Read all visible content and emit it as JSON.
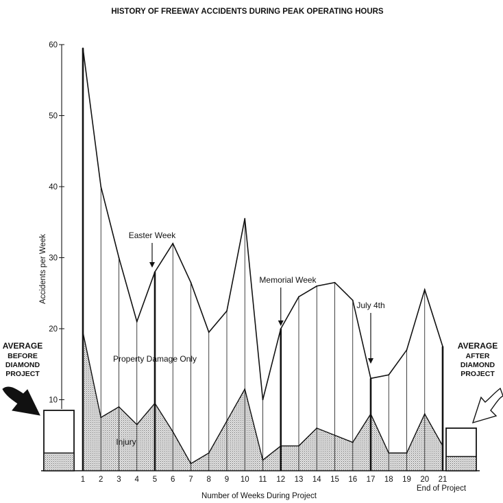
{
  "chart_data": {
    "type": "line",
    "title": "HISTORY OF FREEWAY ACCIDENTS DURING PEAK OPERATING HOURS",
    "xlabel": "Number of Weeks During Project",
    "ylabel": "Accidents per Week",
    "ylim": [
      0,
      60
    ],
    "yticks": [
      10,
      20,
      30,
      40,
      50,
      60
    ],
    "x": [
      1,
      2,
      3,
      4,
      5,
      6,
      7,
      8,
      9,
      10,
      11,
      12,
      13,
      14,
      15,
      16,
      17,
      18,
      19,
      20,
      21
    ],
    "x_tick_labels": [
      "1",
      "2",
      "3",
      "4",
      "5",
      "6",
      "7",
      "8",
      "9",
      "10",
      "11",
      "12",
      "13",
      "14",
      "15",
      "16",
      "17",
      "18",
      "19",
      "20",
      "21"
    ],
    "x_end_label": "End of Project",
    "series": [
      {
        "values": [
          59.5,
          40,
          30,
          21,
          28,
          32,
          26.5,
          19.5,
          22.5,
          35.5,
          10,
          20,
          24.5,
          26,
          26.5,
          24,
          13,
          13.5,
          17,
          25.5,
          17.5
        ]
      },
      {
        "values": [
          19.5,
          7.5,
          9,
          6.5,
          9.5,
          5.5,
          1,
          2.5,
          7,
          11.5,
          1.5,
          3.5,
          3.5,
          6,
          5,
          4,
          8,
          2.5,
          2.5,
          8,
          3.5
        ]
      }
    ],
    "area_labels": {
      "upper": "Property Damage Only",
      "lower": "Injury"
    },
    "averages": {
      "before": {
        "label_lines": [
          "AVERAGE",
          "BEFORE",
          "DIAMOND",
          "PROJECT"
        ],
        "total": 8.5,
        "injury": 2.5
      },
      "after": {
        "label_lines": [
          "AVERAGE",
          "AFTER",
          "DIAMOND",
          "PROJECT"
        ],
        "total": 6,
        "injury": 2
      }
    },
    "annotations": [
      {
        "text": "Easter Week",
        "week": 5
      },
      {
        "text": "Memorial Week",
        "week": 12
      },
      {
        "text": "July 4th",
        "week": 17
      }
    ],
    "highlighted_weeks": [
      1,
      5,
      12,
      17,
      21
    ],
    "grid": false,
    "colors": {
      "line": "#111111",
      "injury_fill": "#c8c8c8"
    }
  }
}
